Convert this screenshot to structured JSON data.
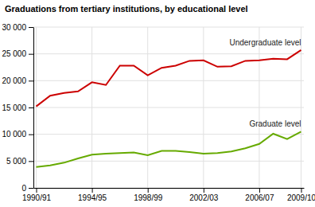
{
  "chart_data": {
    "type": "line",
    "title": "Graduations from tertiary institutions, by educational level",
    "categories": [
      "1990/91",
      null,
      null,
      null,
      "1994/95",
      null,
      null,
      null,
      "1998/99",
      null,
      null,
      null,
      "2002/03",
      null,
      null,
      null,
      "2006/07",
      null,
      null,
      "2009/10"
    ],
    "series": [
      {
        "name": "Undergraduate level",
        "color": "#cc0000",
        "values": [
          15200,
          17200,
          17700,
          18000,
          19700,
          19200,
          22800,
          22800,
          21000,
          22400,
          22800,
          23700,
          23800,
          22600,
          22700,
          23700,
          23800,
          24100,
          24000,
          25700
        ]
      },
      {
        "name": "Graduate level",
        "color": "#66aa00",
        "values": [
          3900,
          4200,
          4700,
          5500,
          6200,
          6400,
          6500,
          6600,
          6100,
          6900,
          6900,
          6700,
          6400,
          6500,
          6800,
          7400,
          8200,
          10100,
          9100,
          10500
        ]
      }
    ],
    "ylim": [
      0,
      30000
    ],
    "yticks": [
      0,
      {
        "value": 5000,
        "label": "5 000"
      },
      {
        "value": 10000,
        "label": "10 000"
      },
      {
        "value": 15000,
        "label": "15 000"
      },
      {
        "value": 20000,
        "label": "20 000"
      },
      {
        "value": 25000,
        "label": "25 000"
      },
      {
        "value": 30000,
        "label": "30 000"
      }
    ],
    "grid": true
  }
}
